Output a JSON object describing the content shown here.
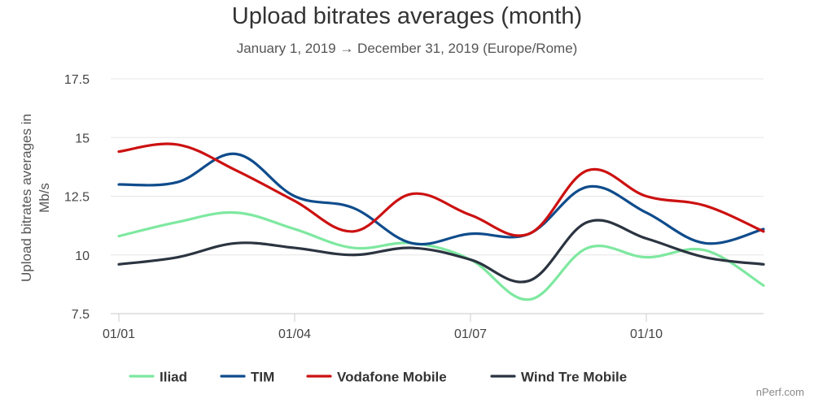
{
  "chart_data": {
    "type": "line",
    "title": "Upload bitrates averages (month)",
    "subtitle": "January 1, 2019 → December 31, 2019 (Europe/Rome)",
    "ylabel": "Upload bitrates averages in Mb/s",
    "ylim": [
      7.5,
      17.5
    ],
    "y_ticks": [
      7.5,
      10,
      12.5,
      15,
      17.5
    ],
    "y_tick_labels": [
      "7.5",
      "10",
      "12.5",
      "15",
      "17.5"
    ],
    "x": [
      "2019-01",
      "2019-02",
      "2019-03",
      "2019-04",
      "2019-05",
      "2019-06",
      "2019-07",
      "2019-08",
      "2019-09",
      "2019-10",
      "2019-11",
      "2019-12"
    ],
    "x_tick_labels": [
      {
        "label": "01/01",
        "month": "2019-01"
      },
      {
        "label": "01/04",
        "month": "2019-04"
      },
      {
        "label": "01/07",
        "month": "2019-07"
      },
      {
        "label": "01/10",
        "month": "2019-10"
      }
    ],
    "grid": true,
    "legend_position": "bottom",
    "series": [
      {
        "name": "Iliad",
        "color": "#7ee8a0",
        "values": [
          10.8,
          11.4,
          11.8,
          11.1,
          10.3,
          10.5,
          9.8,
          8.1,
          10.3,
          9.9,
          10.2,
          8.7
        ]
      },
      {
        "name": "TIM",
        "color": "#0f4c8c",
        "values": [
          13.0,
          13.1,
          14.3,
          12.5,
          12.0,
          10.5,
          10.9,
          10.9,
          12.9,
          11.8,
          10.5,
          11.1
        ]
      },
      {
        "name": "Vodafone Mobile",
        "color": "#cc1111",
        "values": [
          14.4,
          14.7,
          13.6,
          12.3,
          11.0,
          12.6,
          11.7,
          10.9,
          13.6,
          12.5,
          12.1,
          11.0
        ]
      },
      {
        "name": "Wind Tre Mobile",
        "color": "#2b3440",
        "values": [
          9.6,
          9.9,
          10.5,
          10.3,
          10.0,
          10.3,
          9.8,
          8.9,
          11.4,
          10.7,
          9.9,
          9.6
        ]
      }
    ]
  },
  "credit": "nPerf.com"
}
